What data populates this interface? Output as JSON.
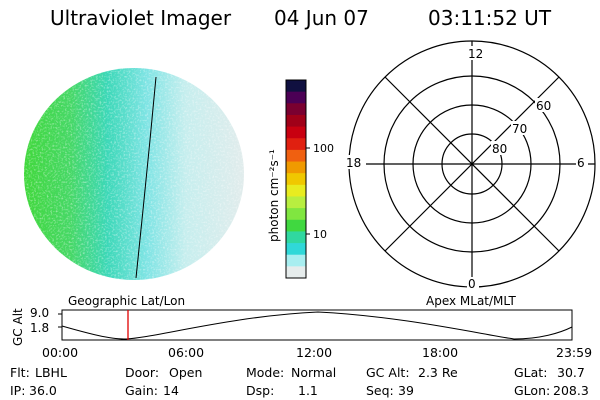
{
  "header": {
    "title": "Ultraviolet Imager",
    "date": "04 Jun 07",
    "time": "03:11:52 UT"
  },
  "colorbar": {
    "unit_label": "photon cm⁻²s⁻¹",
    "ticks": [
      "100",
      "10"
    ],
    "colors": [
      "#101040",
      "#4b0055",
      "#7a0030",
      "#a00018",
      "#c80010",
      "#e02010",
      "#f06010",
      "#f09a00",
      "#f0c800",
      "#e8ec20",
      "#b8ee40",
      "#80e640",
      "#40d840",
      "#30d8a0",
      "#30d8d8",
      "#a8eef0",
      "#e6ecec"
    ]
  },
  "polar_grid": {
    "labels_mlt": [
      "12",
      "18",
      "6",
      "0"
    ],
    "labels_mlat": [
      "60",
      "70",
      "80"
    ]
  },
  "timeline": {
    "left_label": "Geographic Lat/Lon",
    "right_label": "Apex MLat/MLT",
    "y_axis_title": "GC Alt",
    "y_ticks": [
      "9.0",
      "1.8"
    ],
    "x_ticks": [
      "00:00",
      "06:00",
      "12:00",
      "18:00",
      "23:59"
    ],
    "marker_color": "#e00000"
  },
  "info": {
    "row1": [
      {
        "label": "Flt:",
        "value": "LBHL"
      },
      {
        "label": "Door:",
        "value": "Open"
      },
      {
        "label": "Mode:",
        "value": "Normal"
      },
      {
        "label": "GC Alt:",
        "value": "2.3 Re"
      },
      {
        "label": "GLat:",
        "value": "30.7"
      }
    ],
    "row2": [
      {
        "label": "IP:",
        "value": "36.0"
      },
      {
        "label": "Gain:",
        "value": "14"
      },
      {
        "label": "Dsp:",
        "value": "1.1"
      },
      {
        "label": "Seq:",
        "value": "39"
      },
      {
        "label": "GLon:",
        "value": "208.3"
      }
    ]
  }
}
